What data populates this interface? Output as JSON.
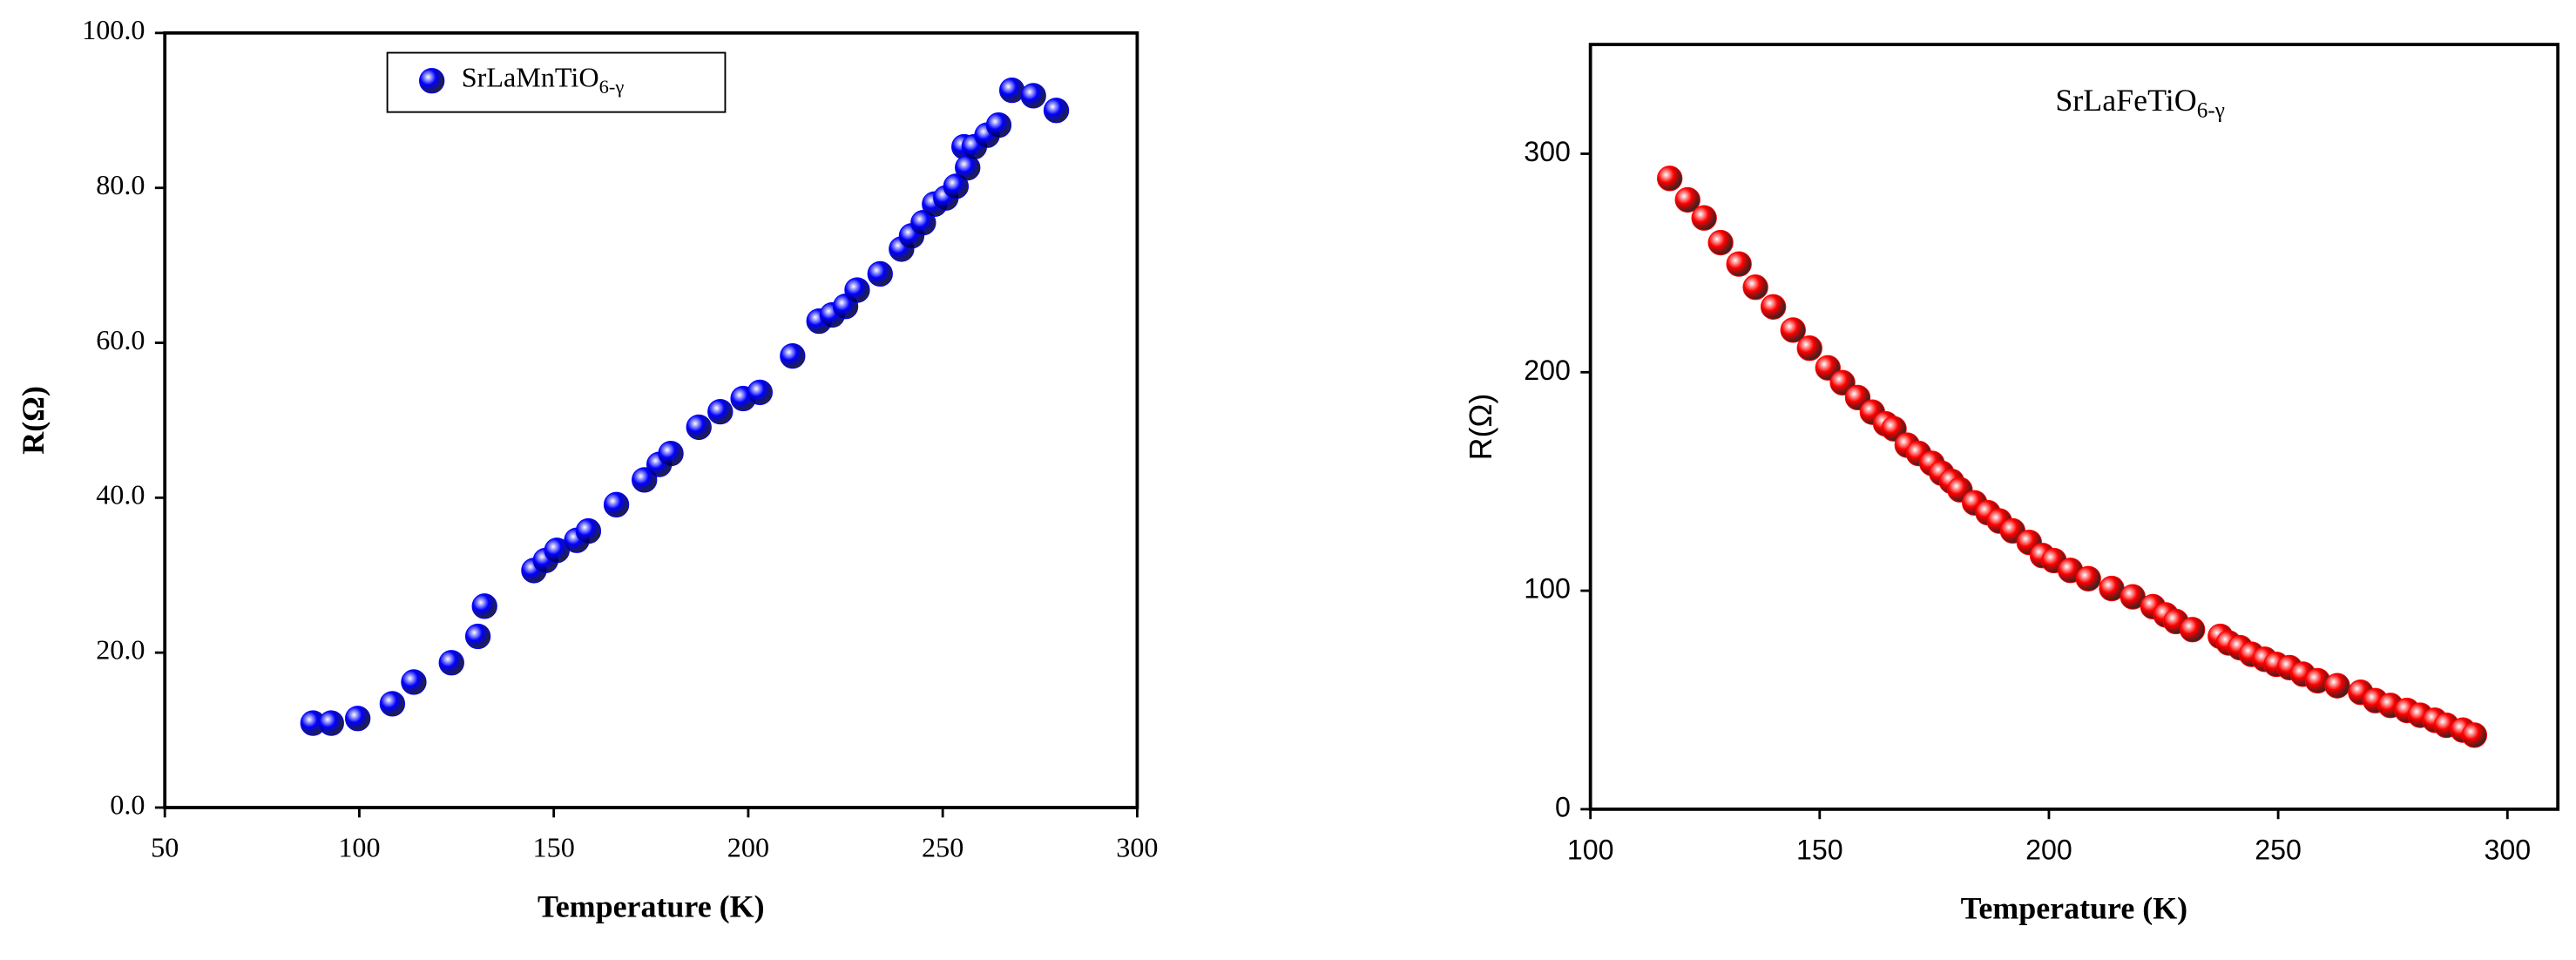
{
  "chart_data": [
    {
      "type": "scatter",
      "x_label": "Temperature (K)",
      "y_label": "R(Ω)",
      "xlim": [
        50,
        300
      ],
      "xticks": [
        50,
        100,
        150,
        200,
        250,
        300
      ],
      "ylim": [
        0,
        100
      ],
      "yticks": [
        {
          "value": 0,
          "label": "0.0"
        },
        {
          "value": 20,
          "label": "20.0"
        },
        {
          "value": 40,
          "label": "40.0"
        },
        {
          "value": 60,
          "label": "60.0"
        },
        {
          "value": 80,
          "label": "80.0"
        },
        {
          "value": 100,
          "label": "100.0"
        }
      ],
      "legend": "top-center",
      "series": [
        {
          "name": "SrLaMnTiO6-γ",
          "color": "#0000ff",
          "x": [
            88.1,
            92.8,
            99.6,
            108.5,
            114.0,
            123.7,
            130.5,
            132.2,
            144.9,
            147.9,
            150.8,
            155.9,
            158.9,
            166.1,
            173.3,
            177.1,
            180.1,
            187.3,
            192.8,
            198.7,
            203.0,
            211.4,
            218.2,
            221.6,
            225.0,
            228.0,
            233.9,
            239.4,
            242.0,
            245.0,
            247.9,
            250.8,
            253.4,
            255.5,
            256.4,
            258.1,
            261.4,
            264.4,
            267.8,
            273.3,
            279.2
          ],
          "values": [
            10.9,
            10.9,
            11.5,
            13.4,
            16.2,
            18.7,
            22.1,
            26.0,
            30.6,
            31.9,
            33.2,
            34.5,
            35.7,
            39.1,
            42.3,
            44.3,
            45.7,
            49.1,
            51.1,
            52.8,
            53.6,
            58.3,
            62.8,
            63.6,
            64.7,
            66.8,
            68.9,
            72.1,
            73.8,
            75.5,
            77.9,
            78.7,
            80.2,
            85.3,
            82.6,
            85.3,
            86.8,
            88.1,
            92.6,
            91.9,
            90.0
          ]
        }
      ]
    },
    {
      "type": "scatter",
      "annotation": "SrLaFeTiO6-γ",
      "x_label": "Temperature (K)",
      "y_label": "R(Ω)",
      "xlim": [
        100,
        311
      ],
      "xticks": [
        100,
        150,
        200,
        250,
        300
      ],
      "ylim": [
        0,
        350
      ],
      "yticks": [
        0,
        100,
        200,
        300
      ],
      "series": [
        {
          "color": "#ff0000",
          "x": [
            117.3,
            121.2,
            124.8,
            128.4,
            132.4,
            136.0,
            139.9,
            144.2,
            147.8,
            151.8,
            155.0,
            158.3,
            161.5,
            164.4,
            166.2,
            169.1,
            171.6,
            174.5,
            176.6,
            178.8,
            180.6,
            183.8,
            186.7,
            189.2,
            192.1,
            195.7,
            198.6,
            201.1,
            204.7,
            208.6,
            213.7,
            218.3,
            222.7,
            225.5,
            227.7,
            231.3,
            237.4,
            239.2,
            241.7,
            244.2,
            247.1,
            249.6,
            252.5,
            255.4,
            258.6,
            262.9,
            268.0,
            271.2,
            274.5,
            278.1,
            281.0,
            284.2,
            286.7,
            290.3,
            292.8
          ],
          "values": [
            288.7,
            278.9,
            270.6,
            259.3,
            249.5,
            238.9,
            229.9,
            219.3,
            211.0,
            202.0,
            195.2,
            188.4,
            181.7,
            176.4,
            174.1,
            166.6,
            162.8,
            158.3,
            153.8,
            150.0,
            146.2,
            140.2,
            135.7,
            131.9,
            127.4,
            122.1,
            116.1,
            113.8,
            109.3,
            105.5,
            101.0,
            97.2,
            92.7,
            88.9,
            85.9,
            82.2,
            79.1,
            76.1,
            73.9,
            70.9,
            68.6,
            66.3,
            64.8,
            61.8,
            58.8,
            56.5,
            53.5,
            49.7,
            47.5,
            45.2,
            43.0,
            40.7,
            38.4,
            36.2,
            33.9
          ]
        }
      ]
    }
  ]
}
